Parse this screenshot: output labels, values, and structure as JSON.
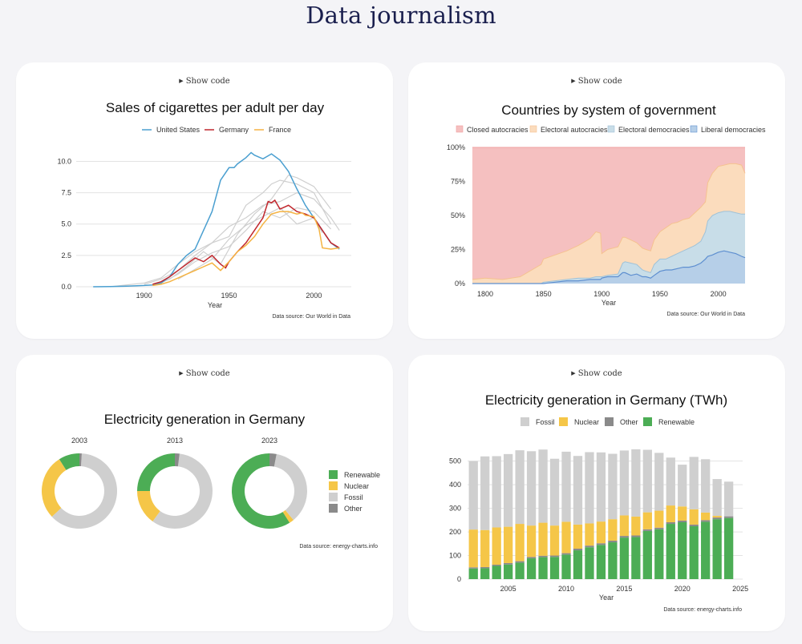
{
  "page": {
    "title": "Data journalism",
    "show_code_label": "Show code"
  },
  "chart_data": [
    {
      "type": "line",
      "title": "Sales of cigarettes per adult per day",
      "xlabel": "Year",
      "ylabel": "",
      "xlim": [
        1860,
        2022
      ],
      "ylim": [
        0,
        11.5
      ],
      "xticks": [
        "1900",
        "1950",
        "2000"
      ],
      "yticks": [
        "0.0",
        "2.5",
        "5.0",
        "7.5",
        "10.0"
      ],
      "source": "Data source: Our World in Data",
      "colors": {
        "United States": "#4a9fd0",
        "Germany": "#c1272d",
        "France": "#f5b342",
        "other": "#cfcfcf"
      },
      "series": [
        {
          "name": "United States",
          "x": [
            1870,
            1880,
            1890,
            1900,
            1905,
            1910,
            1915,
            1920,
            1925,
            1930,
            1935,
            1940,
            1945,
            1950,
            1953,
            1955,
            1960,
            1963,
            1965,
            1970,
            1975,
            1980,
            1985,
            1990,
            1995,
            2000,
            2005,
            2010,
            2015
          ],
          "y": [
            0,
            0.02,
            0.05,
            0.1,
            0.15,
            0.3,
            0.8,
            1.8,
            2.5,
            3.0,
            4.5,
            6.0,
            8.5,
            9.5,
            9.5,
            9.8,
            10.3,
            10.7,
            10.5,
            10.2,
            10.6,
            10.1,
            9.2,
            7.8,
            6.5,
            5.5,
            4.5,
            3.5,
            3.0
          ]
        },
        {
          "name": "Germany",
          "x": [
            1905,
            1910,
            1915,
            1920,
            1925,
            1930,
            1935,
            1940,
            1945,
            1948,
            1950,
            1955,
            1960,
            1965,
            1970,
            1973,
            1975,
            1977,
            1980,
            1985,
            1990,
            1995,
            2000,
            2005,
            2010,
            2015
          ],
          "y": [
            0.2,
            0.4,
            0.8,
            1.3,
            1.8,
            2.3,
            2.0,
            2.5,
            1.8,
            1.5,
            2.0,
            2.8,
            3.5,
            4.5,
            5.5,
            6.8,
            6.7,
            6.9,
            6.2,
            6.5,
            6.0,
            5.8,
            5.5,
            4.5,
            3.5,
            3.1
          ]
        },
        {
          "name": "France",
          "x": [
            1905,
            1910,
            1915,
            1920,
            1925,
            1930,
            1935,
            1940,
            1945,
            1950,
            1955,
            1960,
            1965,
            1970,
            1975,
            1980,
            1985,
            1990,
            1993,
            1995,
            2000,
            2003,
            2005,
            2010,
            2015
          ],
          "y": [
            0.1,
            0.2,
            0.4,
            0.7,
            1.0,
            1.3,
            1.6,
            1.9,
            1.3,
            2.0,
            2.8,
            3.3,
            4.0,
            5.0,
            5.8,
            6.0,
            6.0,
            5.8,
            5.9,
            5.7,
            5.6,
            4.6,
            3.1,
            3.0,
            3.1
          ]
        },
        {
          "name": "other-1",
          "x": [
            1880,
            1900,
            1910,
            1920,
            1930,
            1940,
            1950,
            1960,
            1970,
            1975,
            1980,
            1990,
            2000,
            2010
          ],
          "y": [
            0,
            0.3,
            0.7,
            1.8,
            2.8,
            3.5,
            4.0,
            6.5,
            7.5,
            8.2,
            8.5,
            8.2,
            7.5,
            5.0
          ]
        },
        {
          "name": "other-2",
          "x": [
            1900,
            1910,
            1920,
            1930,
            1940,
            1950,
            1960,
            1970,
            1980,
            1990,
            2000,
            2010,
            2015
          ],
          "y": [
            0.2,
            0.6,
            1.3,
            2.5,
            3.5,
            4.8,
            5.5,
            6.5,
            6.8,
            7.5,
            7.0,
            5.5,
            4.5
          ]
        },
        {
          "name": "other-3",
          "x": [
            1905,
            1915,
            1925,
            1935,
            1945,
            1955,
            1965,
            1975,
            1985,
            1990,
            2000,
            2010
          ],
          "y": [
            0.1,
            0.6,
            1.6,
            2.8,
            1.8,
            4.2,
            5.8,
            7.0,
            8.9,
            8.7,
            8.0,
            6.2
          ]
        },
        {
          "name": "other-4",
          "x": [
            1910,
            1920,
            1930,
            1940,
            1950,
            1960,
            1970,
            1980,
            1990,
            2000,
            2010
          ],
          "y": [
            0.3,
            1.0,
            2.0,
            2.7,
            3.2,
            4.5,
            6.0,
            5.5,
            6.3,
            6.0,
            4.6
          ]
        },
        {
          "name": "other-5",
          "x": [
            1920,
            1930,
            1940,
            1950,
            1960,
            1970,
            1980,
            1990,
            2000,
            2005
          ],
          "y": [
            0.6,
            1.4,
            2.2,
            3.8,
            4.9,
            5.6,
            6.3,
            5.0,
            5.5,
            4.3
          ]
        }
      ]
    },
    {
      "type": "area",
      "title": "Countries by system of government",
      "xlabel": "Year",
      "xlim": [
        1789,
        2023
      ],
      "ylim": [
        0,
        100
      ],
      "xticks": [
        "1800",
        "1850",
        "1900",
        "1950",
        "2000"
      ],
      "yticks": [
        "0%",
        "25%",
        "50%",
        "75%",
        "100%"
      ],
      "source": "Data source: Our World in Data",
      "legend": [
        "Closed autocracies",
        "Electoral autocracies",
        "Electoral democracies",
        "Liberal democracies"
      ],
      "colors": {
        "Closed autocracies": "#f5c0c0",
        "Electoral autocracies": "#fbdcbd",
        "Electoral democracies": "#c8dde8",
        "Liberal democracies": "#b6cfe8",
        "Closed autocracies line": "#f0a0a0",
        "Electoral autocracies line": "#f5c290",
        "Electoral democracies line": "#9fc2d8",
        "Liberal democracies line": "#5e8fd0"
      },
      "x": [
        1789,
        1800,
        1815,
        1830,
        1848,
        1850,
        1860,
        1870,
        1880,
        1890,
        1895,
        1899,
        1900,
        1905,
        1914,
        1918,
        1920,
        1925,
        1930,
        1935,
        1938,
        1942,
        1945,
        1950,
        1955,
        1960,
        1965,
        1970,
        1975,
        1980,
        1985,
        1989,
        1991,
        1995,
        2000,
        2005,
        2010,
        2015,
        2020,
        2023
      ],
      "cumulative": {
        "Liberal democracies": [
          0,
          0,
          0,
          0,
          0,
          0,
          1,
          2,
          2,
          3,
          3,
          3,
          4,
          5,
          5,
          8,
          8,
          6,
          7,
          5,
          5,
          4,
          6,
          9,
          10,
          10,
          11,
          12,
          12,
          13,
          15,
          18,
          20,
          21,
          23,
          24,
          23,
          22,
          20,
          19
        ],
        "Electoral democracies": [
          0,
          0,
          0,
          0,
          0,
          1,
          2,
          3,
          4,
          4,
          5,
          5,
          5,
          6,
          7,
          15,
          16,
          15,
          14,
          10,
          9,
          8,
          14,
          18,
          18,
          20,
          22,
          24,
          26,
          28,
          31,
          38,
          46,
          50,
          52,
          53,
          53,
          52,
          51,
          51
        ],
        "Electoral autocracies": [
          3,
          4,
          3,
          5,
          14,
          18,
          21,
          24,
          28,
          33,
          38,
          37,
          22,
          25,
          27,
          34,
          34,
          32,
          30,
          26,
          25,
          24,
          32,
          38,
          41,
          44,
          45,
          47,
          48,
          52,
          56,
          60,
          74,
          81,
          86,
          87,
          88,
          88,
          87,
          81
        ]
      }
    },
    {
      "type": "pie",
      "title": "Electricity generation in Germany",
      "source": "Data source: energy-charts.info",
      "legend": [
        "Renewable",
        "Nuclear",
        "Fossil",
        "Other"
      ],
      "colors": {
        "Renewable": "#4cad55",
        "Nuclear": "#f5c648",
        "Fossil": "#cfcfcf",
        "Other": "#8a8a8a"
      },
      "panels": [
        {
          "label": "2003",
          "values": {
            "Renewable": 9,
            "Nuclear": 28,
            "Fossil": 62,
            "Other": 1
          }
        },
        {
          "label": "2013",
          "values": {
            "Renewable": 25,
            "Nuclear": 15,
            "Fossil": 58,
            "Other": 2
          }
        },
        {
          "label": "2023",
          "values": {
            "Renewable": 59,
            "Nuclear": 2,
            "Fossil": 36,
            "Other": 3
          }
        }
      ]
    },
    {
      "type": "bar",
      "title": "Electricity generation in Germany (TWh)",
      "xlabel": "Year",
      "ylim": [
        0,
        560
      ],
      "xticks": [
        "2005",
        "2010",
        "2015",
        "2020",
        "2025"
      ],
      "yticks": [
        "0",
        "100",
        "200",
        "300",
        "400",
        "500"
      ],
      "source": "Data source: energy-charts.info",
      "legend": [
        "Fossil",
        "Nuclear",
        "Other",
        "Renewable"
      ],
      "colors": {
        "Fossil": "#cfcfcf",
        "Nuclear": "#f5c648",
        "Other": "#8a8a8a",
        "Renewable": "#4cad55"
      },
      "categories": [
        2002,
        2003,
        2004,
        2005,
        2006,
        2007,
        2008,
        2009,
        2010,
        2011,
        2012,
        2013,
        2014,
        2015,
        2016,
        2017,
        2018,
        2019,
        2020,
        2021,
        2022,
        2023,
        2024
      ],
      "series": [
        {
          "name": "Renewable",
          "values": [
            45,
            46,
            56,
            62,
            70,
            88,
            93,
            94,
            104,
            122,
            135,
            145,
            156,
            176,
            178,
            204,
            211,
            234,
            241,
            224,
            243,
            254,
            259
          ]
        },
        {
          "name": "Other",
          "values": [
            5,
            5,
            5,
            6,
            6,
            6,
            6,
            6,
            6,
            7,
            7,
            7,
            7,
            7,
            7,
            7,
            7,
            7,
            7,
            7,
            7,
            7,
            7
          ]
        },
        {
          "name": "Nuclear",
          "values": [
            160,
            157,
            158,
            154,
            158,
            133,
            140,
            127,
            133,
            102,
            94,
            92,
            91,
            87,
            80,
            72,
            72,
            71,
            60,
            65,
            32,
            7,
            0
          ]
        },
        {
          "name": "Fossil",
          "values": [
            290,
            312,
            302,
            308,
            312,
            315,
            310,
            283,
            297,
            291,
            302,
            293,
            277,
            275,
            285,
            265,
            245,
            203,
            177,
            222,
            226,
            156,
            147
          ]
        }
      ]
    }
  ]
}
